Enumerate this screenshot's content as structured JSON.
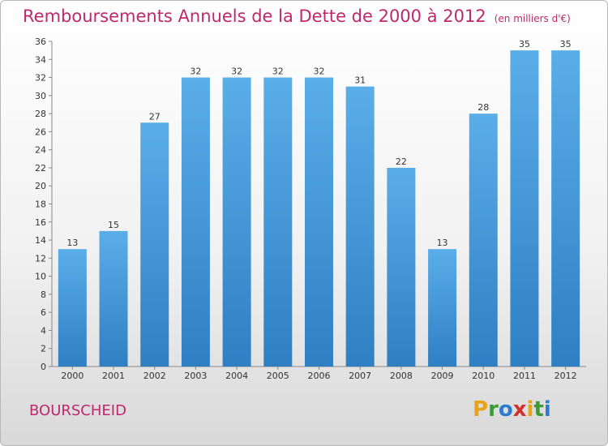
{
  "header": {
    "title": "Remboursements Annuels de la Dette de 2000 à 2012",
    "unit": "(en milliers d'€)"
  },
  "footer": {
    "commune": "BOURSCHEID",
    "brand_letters": [
      "P",
      "r",
      "o",
      "x",
      "i",
      "t",
      "i"
    ],
    "brand_colors": [
      "#e8a317",
      "#3d9b35",
      "#2b7bd0",
      "#d03030",
      "#e8a317",
      "#3d9b35",
      "#2b7bd0"
    ]
  },
  "chart_data": {
    "type": "bar",
    "title": "Remboursements Annuels de la Dette de 2000 à 2012",
    "categories": [
      "2000",
      "2001",
      "2002",
      "2003",
      "2004",
      "2005",
      "2006",
      "2007",
      "2008",
      "2009",
      "2010",
      "2011",
      "2012"
    ],
    "values": [
      13,
      15,
      27,
      32,
      32,
      32,
      32,
      31,
      22,
      13,
      28,
      35,
      35
    ],
    "ylim": [
      0,
      36
    ],
    "y_ticks": [
      0,
      2,
      4,
      6,
      8,
      10,
      12,
      14,
      16,
      18,
      20,
      22,
      24,
      26,
      28,
      30,
      32,
      34,
      36
    ],
    "grid": false,
    "bar_color": "#3f93d8"
  }
}
